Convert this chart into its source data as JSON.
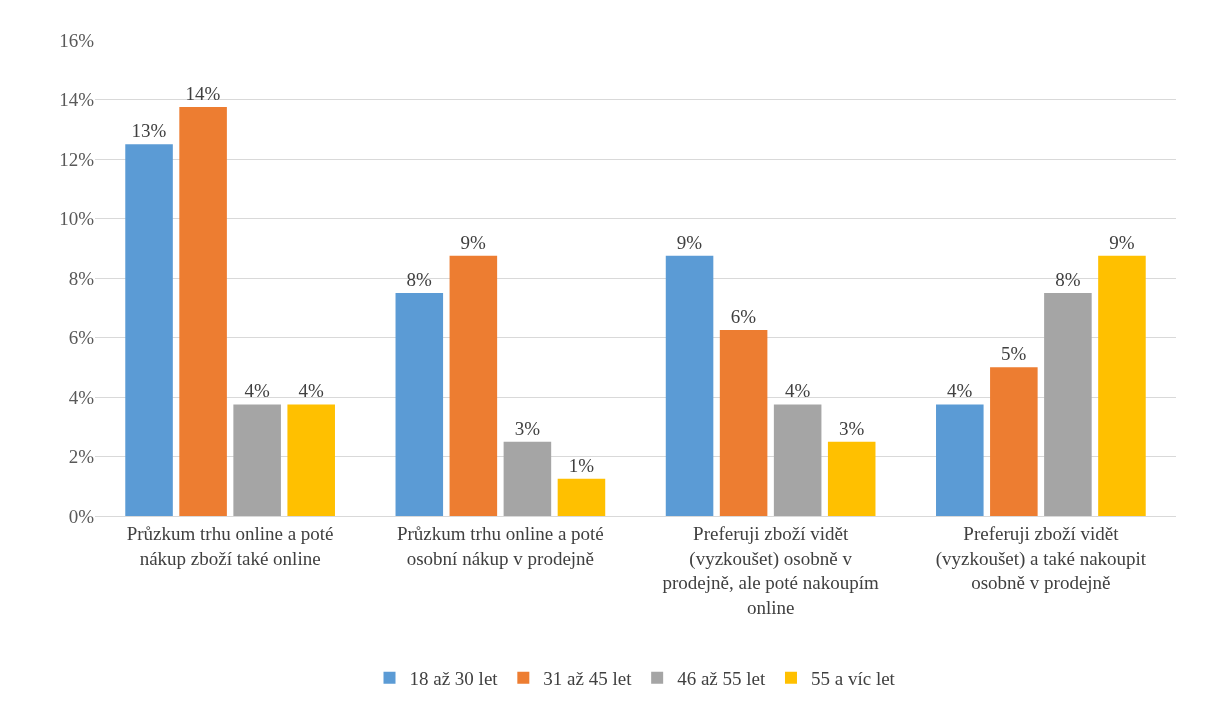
{
  "chart_data": {
    "type": "bar",
    "categories": [
      "Průzkum trhu online a poté nákup zboží také online",
      "Průzkum trhu online a poté osobní nákup v prodejně",
      "Preferuji zboží vidět (vyzkoušet) osobně v prodejně, ale poté nakoupím online",
      "Preferuji zboží vidět (vyzkoušet) a také nakoupit osobně v prodejně"
    ],
    "series": [
      {
        "name": "18 až 30 let",
        "color": "#5b9bd5",
        "values": [
          12.5,
          7.5,
          8.75,
          3.75
        ],
        "value_labels": [
          "13%",
          "8%",
          "9%",
          "4%"
        ]
      },
      {
        "name": "31 až 45 let",
        "color": "#ed7d31",
        "values": [
          13.75,
          8.75,
          6.25,
          5
        ],
        "value_labels": [
          "14%",
          "9%",
          "6%",
          "5%"
        ]
      },
      {
        "name": "46 až 55 let",
        "color": "#a5a5a5",
        "values": [
          3.75,
          2.5,
          3.75,
          7.5
        ],
        "value_labels": [
          "4%",
          "3%",
          "4%",
          "8%"
        ]
      },
      {
        "name": "55 a víc let",
        "color": "#ffc000",
        "values": [
          3.75,
          1.25,
          2.5,
          8.75
        ],
        "value_labels": [
          "4%",
          "1%",
          "3%",
          "9%"
        ]
      }
    ],
    "ylim": [
      0,
      16
    ],
    "yticks": [
      {
        "value": 0,
        "label": "0%"
      },
      {
        "value": 2,
        "label": "2%"
      },
      {
        "value": 4,
        "label": "4%"
      },
      {
        "value": 6,
        "label": "6%"
      },
      {
        "value": 8,
        "label": "8%"
      },
      {
        "value": 10,
        "label": "10%"
      },
      {
        "value": 12,
        "label": "12%"
      },
      {
        "value": 14,
        "label": "14%"
      },
      {
        "value": 16,
        "label": "16%"
      }
    ],
    "grid": "y",
    "legend": "bottom"
  }
}
